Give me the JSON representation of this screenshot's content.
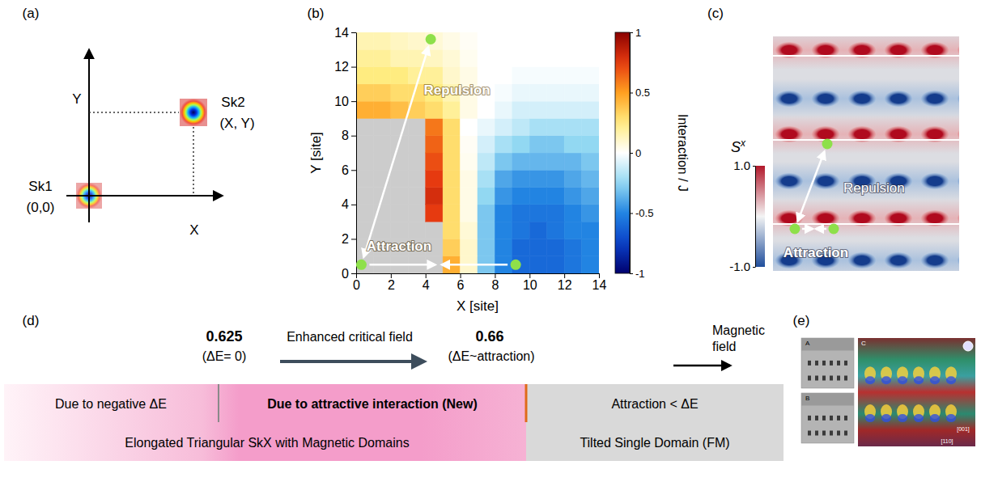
{
  "chart_data": {
    "type": "heatmap",
    "panel_label": "(b)",
    "x_label": "X [site]",
    "y_label": "Y [site]",
    "xlim": [
      0,
      14
    ],
    "ylim": [
      0,
      14
    ],
    "xticks": [
      0,
      2,
      4,
      6,
      8,
      10,
      12,
      14
    ],
    "yticks": [
      0,
      2,
      4,
      6,
      8,
      10,
      12,
      14
    ],
    "x_edges": [
      0,
      1,
      2,
      3,
      4,
      5,
      6,
      7,
      8,
      9,
      10,
      11,
      12,
      13,
      14
    ],
    "y_edges": [
      0,
      1,
      2,
      3,
      4,
      5,
      6,
      7,
      8,
      9,
      10,
      11,
      12,
      13,
      14
    ],
    "cells": [
      [
        null,
        null,
        null,
        null,
        null,
        0.45,
        0.1,
        -0.3,
        -0.5,
        -0.6,
        -0.6,
        -0.6,
        -0.55,
        -0.5
      ],
      [
        null,
        null,
        null,
        null,
        null,
        0.35,
        0.1,
        -0.3,
        -0.5,
        -0.6,
        -0.6,
        -0.6,
        -0.55,
        -0.5
      ],
      [
        null,
        null,
        null,
        null,
        null,
        0.3,
        0.08,
        -0.3,
        -0.5,
        -0.55,
        -0.6,
        -0.55,
        -0.5,
        -0.5
      ],
      [
        null,
        null,
        null,
        null,
        0.75,
        0.3,
        0.05,
        -0.3,
        -0.5,
        -0.55,
        -0.55,
        -0.55,
        -0.5,
        -0.45
      ],
      [
        null,
        null,
        null,
        null,
        0.8,
        0.3,
        0.05,
        -0.25,
        -0.45,
        -0.5,
        -0.5,
        -0.5,
        -0.45,
        -0.4
      ],
      [
        null,
        null,
        null,
        null,
        0.75,
        0.3,
        0.05,
        -0.2,
        -0.4,
        -0.45,
        -0.45,
        -0.45,
        -0.4,
        -0.35
      ],
      [
        null,
        null,
        null,
        null,
        0.7,
        0.3,
        0.03,
        -0.15,
        -0.3,
        -0.35,
        -0.35,
        -0.35,
        -0.35,
        -0.3
      ],
      [
        null,
        null,
        null,
        null,
        0.65,
        0.3,
        0.02,
        -0.1,
        -0.2,
        -0.25,
        -0.3,
        -0.3,
        -0.25,
        -0.25
      ],
      [
        null,
        null,
        null,
        null,
        0.6,
        0.3,
        0,
        -0.05,
        -0.1,
        -0.15,
        -0.2,
        -0.2,
        -0.2,
        -0.2
      ],
      [
        0.45,
        0.45,
        0.4,
        0.35,
        0.3,
        0.2,
        0.05,
        0,
        -0.05,
        -0.1,
        -0.1,
        -0.1,
        -0.1,
        -0.1
      ],
      [
        0.35,
        0.35,
        0.3,
        0.3,
        0.25,
        0.15,
        0.05,
        0,
        -0.02,
        -0.05,
        -0.05,
        -0.05,
        -0.05,
        -0.05
      ],
      [
        0.25,
        0.25,
        0.25,
        0.2,
        0.2,
        0.1,
        0.05,
        0,
        0,
        -0.02,
        -0.02,
        -0.02,
        -0.02,
        -0.02
      ],
      [
        0.2,
        0.2,
        0.15,
        0.15,
        0.12,
        0.08,
        0.03,
        0,
        0,
        0,
        0,
        0,
        0,
        0
      ],
      [
        0.15,
        0.15,
        0.12,
        0.1,
        0.08,
        0.05,
        0.02,
        0,
        0,
        0,
        0,
        0,
        0,
        0
      ]
    ],
    "colorbar": {
      "title": "Interaction / J",
      "range": [
        -1,
        1
      ],
      "ticks": [
        -1,
        -0.5,
        0,
        0.5,
        1
      ]
    },
    "points": {
      "x": [
        0.3,
        4.3,
        9.2
      ],
      "y": [
        0.5,
        13.6,
        0.5
      ]
    },
    "annotations": [
      "Repulsion",
      "Attraction"
    ]
  },
  "panel_a": {
    "label": "(a)",
    "x_axis": "X",
    "y_axis": "Y",
    "sk1": {
      "name": "Sk1",
      "coords": "(0,0)"
    },
    "sk2": {
      "name": "Sk2",
      "coords": "(X, Y)"
    }
  },
  "panel_c": {
    "label": "(c)",
    "colorbar": {
      "base": "S",
      "sup": "x",
      "range": [
        -1,
        1
      ],
      "ticks": [
        {
          "value": 1,
          "label": "1.0"
        },
        {
          "value": -1,
          "label": "-1.0"
        }
      ]
    },
    "annotations": [
      "Repulsion",
      "Attraction"
    ]
  },
  "panel_d": {
    "label": "(d)",
    "thresholds": [
      {
        "value": 0.625,
        "note": "(ΔE= 0)"
      },
      {
        "value": 0.66,
        "note": "(ΔE~attraction)"
      }
    ],
    "arrow_label": "Enhanced critical field",
    "axis_label": "Magnetic field",
    "regions_top": [
      "Due to negative ΔE",
      "Due to attractive interaction (New)",
      "Attraction < ΔE"
    ],
    "regions_bottom": [
      "Elongated Triangular SkX with Magnetic Domains",
      "Tilted Single Domain (FM)"
    ]
  },
  "panel_e": {
    "label": "(e)",
    "images": [
      "A",
      "B",
      "C"
    ],
    "directions": [
      "[001]",
      "[110]"
    ]
  }
}
